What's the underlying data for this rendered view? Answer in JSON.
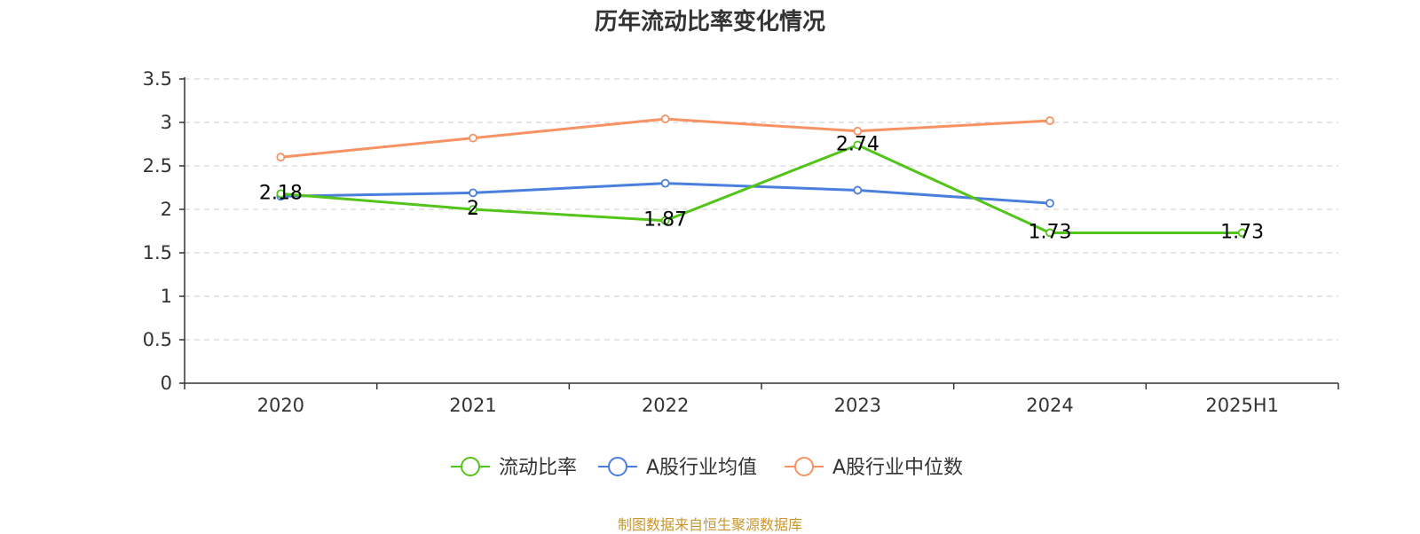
{
  "chart_data": {
    "type": "line",
    "title": "历年流动比率变化情况",
    "categories": [
      "2020",
      "2021",
      "2022",
      "2023",
      "2024",
      "2025H1"
    ],
    "ylim": [
      0,
      3.5
    ],
    "yticks": [
      "0",
      "0.5",
      "1",
      "1.5",
      "2",
      "2.5",
      "3",
      "3.5"
    ],
    "grid": true,
    "legend_position": "bottom-center",
    "series": [
      {
        "name": "流动比率",
        "color": "#52c41a",
        "values": [
          2.18,
          2.0,
          1.87,
          2.74,
          1.73,
          1.73
        ],
        "labels": [
          "2.18",
          "2",
          "1.87",
          "2.74",
          "1.73",
          "1.73"
        ]
      },
      {
        "name": "A股行业均值",
        "color": "#4a7fdc",
        "values": [
          2.15,
          2.19,
          2.3,
          2.22,
          2.07,
          null
        ]
      },
      {
        "name": "A股行业中位数",
        "color": "#f79262",
        "values": [
          2.6,
          2.82,
          3.04,
          2.9,
          3.02,
          null
        ]
      }
    ]
  },
  "source_note": {
    "text": "制图数据来自恒生聚源数据库",
    "color": "#c8962d"
  }
}
